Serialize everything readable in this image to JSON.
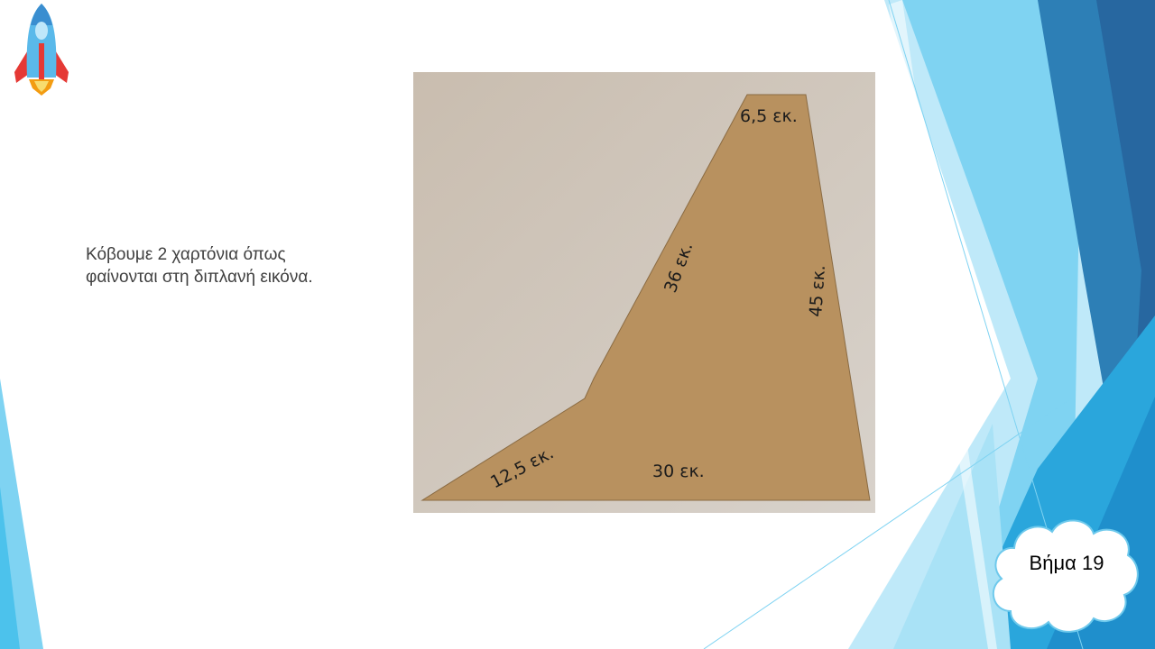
{
  "slide": {
    "description_lines": [
      "Κόβουμε 2 χαρτόνια όπως",
      "φαίνονται στη διπλανή εικόνα."
    ],
    "step_label": "Βήμα 19"
  },
  "photo": {
    "labels": {
      "top": "6,5 εκ.",
      "slant": "36 εκ.",
      "right": "45 εκ.",
      "lower_left": "12,5 εκ.",
      "bottom": "30 εκ."
    }
  },
  "colors": {
    "accent_light": "#7fd3f2",
    "accent_mid": "#2fb1e4",
    "accent_dark": "#2a6fa3",
    "cardboard": "#b8915f",
    "wall": "#cfc6bb",
    "text": "#404040"
  },
  "icons": {
    "rocket": "rocket-icon",
    "cloud": "cloud-shape"
  }
}
